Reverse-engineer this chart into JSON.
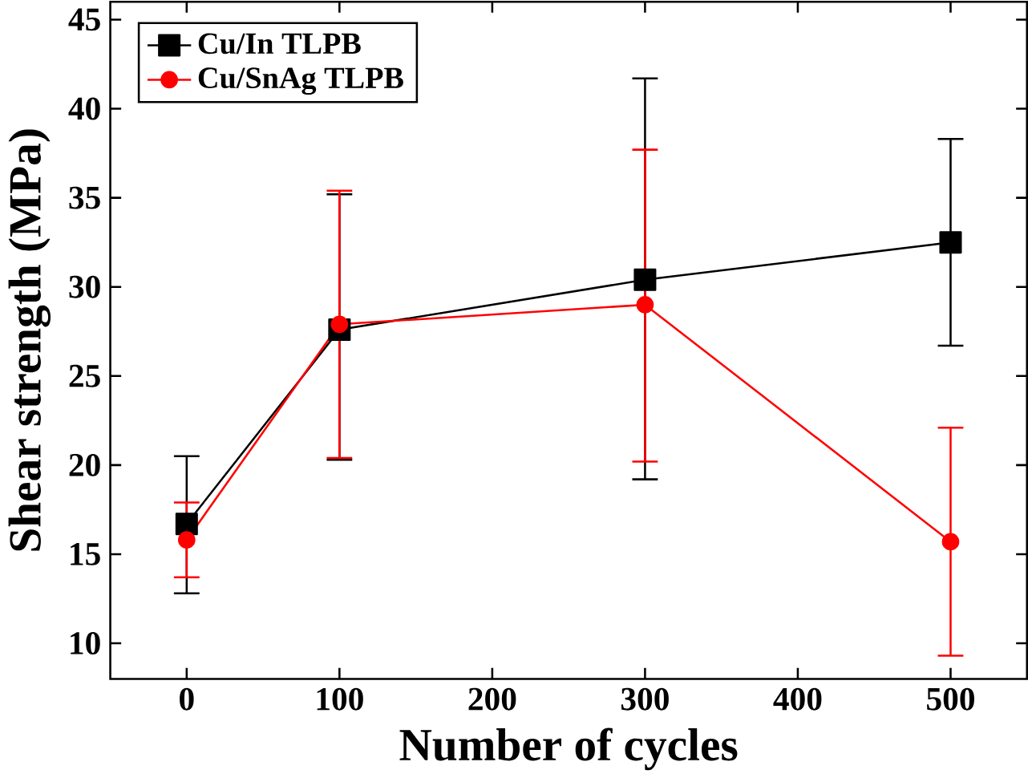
{
  "chart_data": {
    "type": "line",
    "xlabel": "Number of cycles",
    "ylabel": "Shear strength (MPa)",
    "x": [
      0,
      100,
      300,
      500
    ],
    "series": [
      {
        "name": "Cu/In TLPB",
        "color": "#000000",
        "marker": "square",
        "values": [
          16.7,
          27.6,
          30.4,
          32.5
        ],
        "errors": [
          [
            12.8,
            20.5
          ],
          [
            20.3,
            35.2
          ],
          [
            19.2,
            41.7
          ],
          [
            26.7,
            38.3
          ]
        ]
      },
      {
        "name": "Cu/SnAg TLPB",
        "color": "#ff0000",
        "marker": "circle",
        "values": [
          15.8,
          27.9,
          29.0,
          15.7
        ],
        "errors": [
          [
            13.7,
            17.9
          ],
          [
            20.4,
            35.4
          ],
          [
            20.2,
            37.7
          ],
          [
            9.3,
            22.1
          ]
        ]
      }
    ],
    "xlim": [
      -50,
      550
    ],
    "ylim": [
      8,
      46
    ],
    "xticks": [
      0,
      100,
      200,
      300,
      400,
      500
    ],
    "yticks": [
      10,
      15,
      20,
      25,
      30,
      35,
      40,
      45
    ],
    "legend": "top left",
    "grid": false,
    "line_style": "solid"
  }
}
